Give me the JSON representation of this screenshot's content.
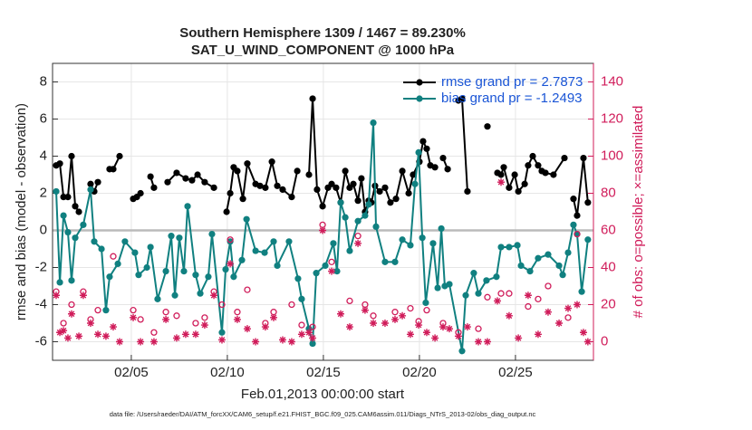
{
  "chart_data": {
    "type": "line",
    "title": "Southern Hemisphere 1309 / 1467 = 89.230%",
    "subtitle": "SAT_U_WIND_COMPONENT @ 1000 hPa",
    "xlabel": "Feb.01,2013 00:00:00 start",
    "ylabel": "rmse and bias (model - observation)",
    "y2label": "# of obs: o=possible; ×=assimilated",
    "footnote": "data file: /Users/raeder/DAI/ATM_forcXX/CAM6_setup/f.e21.FHIST_BGC.f09_025.CAM6assim.011/Diags_NTrS_2013-02/obs_diag_output.nc",
    "xlim": [
      0.9,
      29.06
    ],
    "xticks": [
      {
        "value": 5,
        "label": "02/05"
      },
      {
        "value": 10,
        "label": "02/10"
      },
      {
        "value": 15,
        "label": "02/15"
      },
      {
        "value": 20,
        "label": "02/20"
      },
      {
        "value": 25,
        "label": "02/25"
      }
    ],
    "ylim": [
      -7,
      9
    ],
    "yticks": [
      -6,
      -4,
      -2,
      0,
      2,
      4,
      6,
      8
    ],
    "y2lim": [
      -10,
      150
    ],
    "y2ticks": [
      0,
      20,
      40,
      60,
      80,
      100,
      120,
      140
    ],
    "y2color": "#d01c5a",
    "grid": true,
    "zero_line": true,
    "legend": "upper right",
    "series": [
      {
        "name": "rmse grand pr = 2.7873",
        "color": "#000000",
        "marker": "filled-circle",
        "line": true,
        "x": [
          1.09,
          1.28,
          1.47,
          1.7,
          1.89,
          2.08,
          2.27,
          null,
          2.88,
          3.07,
          3.26,
          null,
          3.87,
          4.06,
          4.39,
          null,
          5.1,
          5.29,
          5.48,
          null,
          6.0,
          6.18,
          null,
          6.89,
          7.36,
          7.83,
          8.16,
          8.45,
          8.82,
          9.3,
          null,
          9.96,
          10.15,
          10.33,
          10.52,
          10.81,
          11.04,
          11.47,
          11.7,
          11.98,
          12.32,
          12.6,
          12.88,
          13.35,
          13.64,
          null,
          14.25,
          14.44,
          14.67,
          14.96,
          15.24,
          15.43,
          15.66,
          15.9,
          16.14,
          16.37,
          16.56,
          16.8,
          16.98,
          17.17,
          17.36,
          17.5,
          17.69,
          17.93,
          18.21,
          18.49,
          18.78,
          19.11,
          19.44,
          19.67,
          20.0,
          20.19,
          20.38,
          20.57,
          20.81,
          null,
          21.23,
          21.47,
          null,
          22.03,
          22.22,
          22.5,
          null,
          23.54,
          null,
          24.06,
          24.25,
          24.39,
          24.67,
          24.96,
          25.15,
          25.48,
          25.66,
          25.9,
          26.18,
          26.37,
          26.56,
          26.98,
          27.55,
          null,
          28.02,
          28.21,
          28.54,
          28.77
        ],
        "values": [
          3.5,
          3.6,
          1.8,
          1.8,
          4.0,
          1.3,
          1.0,
          null,
          2.5,
          2.1,
          2.6,
          null,
          3.3,
          3.3,
          4.0,
          null,
          1.7,
          1.8,
          2.0,
          null,
          2.9,
          2.3,
          null,
          2.6,
          3.1,
          2.8,
          2.7,
          3.0,
          2.6,
          2.3,
          null,
          1.0,
          2.0,
          3.4,
          3.2,
          1.7,
          3.6,
          2.5,
          2.4,
          2.3,
          3.7,
          2.4,
          2.2,
          1.8,
          3.2,
          null,
          3.0,
          7.1,
          2.2,
          1.3,
          2.3,
          2.5,
          2.3,
          1.5,
          3.2,
          2.3,
          2.5,
          1.6,
          2.8,
          1.0,
          1.6,
          1.5,
          2.4,
          2.1,
          2.3,
          1.5,
          1.7,
          3.2,
          2.0,
          3.0,
          3.7,
          4.8,
          4.4,
          3.5,
          3.4,
          null,
          3.9,
          3.3,
          null,
          7.0,
          7.1,
          2.1,
          null,
          5.6,
          null,
          3.1,
          3.0,
          3.4,
          2.3,
          3.0,
          2.1,
          2.5,
          3.5,
          4.0,
          3.5,
          3.2,
          3.1,
          3.0,
          3.9,
          null,
          1.7,
          0.8,
          3.9,
          1.5
        ]
      },
      {
        "name": "bias grand pr = -1.2493",
        "color": "#108080",
        "marker": "filled-circle",
        "line": true,
        "x": [
          1.09,
          1.28,
          1.47,
          1.7,
          1.89,
          2.08,
          2.5,
          2.88,
          3.07,
          3.45,
          3.68,
          3.87,
          4.3,
          4.67,
          5.19,
          5.38,
          5.81,
          6.0,
          6.37,
          6.8,
          7.08,
          7.27,
          7.5,
          7.74,
          7.93,
          8.35,
          8.59,
          9.01,
          9.2,
          9.72,
          9.91,
          10.15,
          10.33,
          10.76,
          11.0,
          11.47,
          11.94,
          12.41,
          12.6,
          13.21,
          13.68,
          13.87,
          14.25,
          14.44,
          14.63,
          15.1,
          15.52,
          15.71,
          15.9,
          16.14,
          16.37,
          16.8,
          17.17,
          17.36,
          17.6,
          17.74,
          18.21,
          18.73,
          19.11,
          19.53,
          19.77,
          19.96,
          20.15,
          20.33,
          20.71,
          20.95,
          21.14,
          21.32,
          21.56,
          22.22,
          22.41,
          22.83,
          23.07,
          23.49,
          24.01,
          24.25,
          24.67,
          25.1,
          25.29,
          25.76,
          26.18,
          26.7,
          27.27,
          27.46,
          27.74,
          28.02,
          28.21,
          28.45,
          28.77
        ],
        "values": [
          2.1,
          -2.8,
          0.8,
          -0.1,
          -2.7,
          -0.4,
          0.3,
          2.2,
          -0.6,
          -1.0,
          -4.3,
          -2.5,
          -1.8,
          -0.6,
          -1.2,
          -2.4,
          -2.0,
          -0.9,
          -3.7,
          -2.2,
          -0.3,
          -3.5,
          -0.4,
          -2.2,
          1.3,
          -2.4,
          -3.4,
          -2.5,
          -0.2,
          -5.5,
          -2.1,
          -0.6,
          -2.5,
          -1.6,
          0.6,
          -1.1,
          -1.2,
          -0.6,
          -1.9,
          -0.6,
          -2.6,
          -3.7,
          -5.3,
          -6.1,
          -2.3,
          -1.9,
          -0.7,
          -2.2,
          1.5,
          0.7,
          -1.1,
          0.5,
          0.8,
          1.4,
          5.8,
          0.2,
          -1.7,
          -1.7,
          -0.5,
          -0.8,
          2.5,
          4.2,
          -0.4,
          -3.9,
          -0.7,
          -3.1,
          0.1,
          -3.0,
          -2.9,
          -6.5,
          -3.5,
          -2.3,
          -3.4,
          -2.7,
          -2.5,
          -0.9,
          -0.9,
          -0.8,
          -1.9,
          -2.2,
          -1.5,
          -1.3,
          -1.9,
          -2.4,
          -1.2,
          0.3,
          -0.2,
          -3.3,
          -0.5
        ]
      },
      {
        "color": "#d01c5a",
        "marker": "circle",
        "line": false,
        "axis": "y2",
        "x": [
          1.09,
          1.47,
          1.89,
          2.5,
          2.88,
          3.26,
          4.06,
          5.1,
          5.48,
          6.18,
          6.8,
          7.36,
          8.35,
          8.82,
          9.3,
          9.72,
          10.15,
          10.52,
          11.04,
          11.98,
          12.41,
          13.35,
          13.87,
          14.44,
          14.96,
          15.43,
          16.37,
          16.8,
          17.17,
          17.6,
          18.73,
          19.53,
          19.96,
          20.38,
          21.23,
          22.03,
          23.07,
          23.54,
          24.25,
          24.67,
          25.66,
          26.18,
          26.7,
          27.74,
          28.21
        ],
        "values": [
          27,
          10,
          20,
          27,
          12,
          17,
          46,
          17,
          12,
          5,
          16,
          14,
          10,
          13,
          27,
          20,
          55,
          16,
          28,
          10,
          16,
          20,
          9,
          8,
          63,
          43,
          22,
          57,
          20,
          14,
          16,
          18,
          11,
          17,
          10,
          5,
          7,
          24,
          26,
          26,
          19,
          23,
          30,
          13,
          58
        ]
      },
      {
        "color": "#d01c5a",
        "marker": "asterisk",
        "line": false,
        "axis": "y2",
        "x": [
          1.09,
          1.28,
          1.47,
          1.7,
          1.89,
          2.27,
          2.5,
          2.88,
          3.26,
          3.68,
          4.06,
          4.39,
          5.1,
          5.48,
          6.18,
          6.8,
          7.36,
          7.83,
          8.35,
          8.82,
          9.3,
          9.72,
          10.15,
          10.52,
          11.04,
          11.47,
          11.98,
          12.41,
          12.88,
          13.35,
          13.87,
          14.25,
          14.44,
          14.96,
          15.43,
          15.9,
          16.37,
          16.8,
          17.17,
          17.6,
          18.21,
          18.73,
          19.11,
          19.53,
          19.96,
          20.38,
          20.81,
          21.23,
          21.56,
          22.03,
          22.5,
          23.07,
          23.54,
          24.06,
          24.25,
          24.67,
          25.15,
          25.66,
          26.18,
          26.7,
          27.27,
          27.74,
          28.21,
          28.54,
          28.77
        ],
        "values": [
          25,
          5,
          6,
          2,
          15,
          3,
          25,
          10,
          4,
          3,
          8,
          0,
          13,
          0,
          0,
          12,
          2,
          4,
          4,
          9,
          25,
          1,
          42,
          12,
          7,
          0,
          8,
          13,
          1,
          0,
          4,
          5,
          2,
          60,
          38,
          15,
          8,
          53,
          17,
          10,
          10,
          12,
          14,
          4,
          9,
          5,
          2,
          8,
          7,
          3,
          8,
          0,
          0,
          22,
          86,
          14,
          2,
          25,
          4,
          16,
          10,
          18,
          20,
          5,
          0
        ]
      }
    ]
  }
}
